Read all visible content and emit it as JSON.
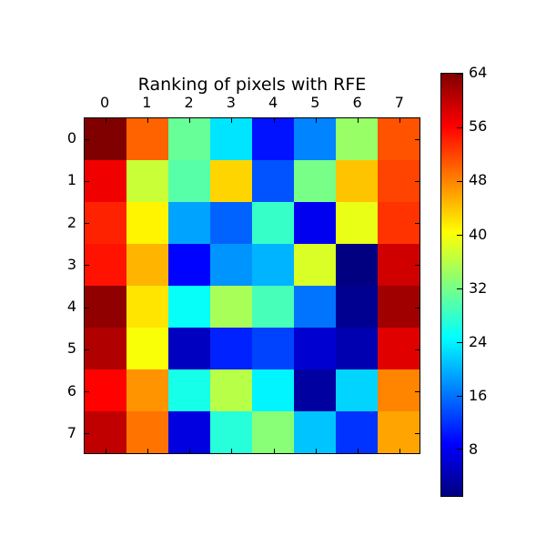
{
  "chart_data": {
    "type": "heatmap",
    "title": "Ranking of pixels with RFE",
    "colormap": "jet",
    "vmin": 1,
    "vmax": 64,
    "x_tick_labels": [
      "0",
      "1",
      "2",
      "3",
      "4",
      "5",
      "6",
      "7"
    ],
    "y_tick_labels": [
      "0",
      "1",
      "2",
      "3",
      "4",
      "5",
      "6",
      "7"
    ],
    "colorbar_tick_labels": [
      8,
      16,
      24,
      32,
      40,
      48,
      56,
      64
    ],
    "legend_position": "right-colorbar",
    "grid": false,
    "matrix": [
      [
        64,
        50,
        31,
        23,
        10,
        17,
        34,
        51
      ],
      [
        57,
        37,
        30,
        43,
        14,
        32,
        44,
        52
      ],
      [
        54,
        41,
        19,
        15,
        28,
        8,
        39,
        53
      ],
      [
        55,
        45,
        9,
        18,
        20,
        38,
        1,
        59
      ],
      [
        63,
        42,
        25,
        35,
        29,
        16,
        2,
        62
      ],
      [
        61,
        40,
        5,
        11,
        13,
        6,
        4,
        58
      ],
      [
        56,
        47,
        26,
        36,
        24,
        3,
        22,
        48
      ],
      [
        60,
        49,
        7,
        27,
        33,
        21,
        12,
        46
      ]
    ]
  }
}
